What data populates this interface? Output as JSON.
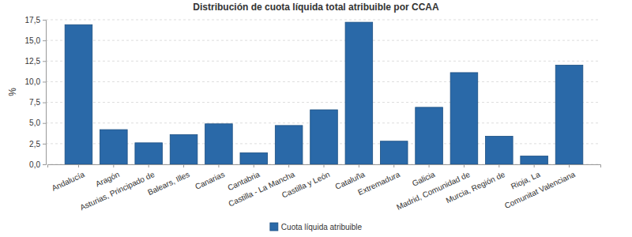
{
  "chart_data": {
    "type": "bar",
    "title": "Distribución de cuota líquida total atribuible por CCAA",
    "y_label": "%",
    "categories": [
      "Andalucía",
      "Aragón",
      "Asturias, Principado de",
      "Balears, Illes",
      "Canarias",
      "Cantabria",
      "Castilla - La Mancha",
      "Castilla y León",
      "Cataluña",
      "Extremadura",
      "Galicia",
      "Madrid, Comunidad de",
      "Murcia, Región de",
      "Rioja, La",
      "Comunitat Valenciana"
    ],
    "series": [
      {
        "name": "Cuota líquida atribuible",
        "color": "#2a69a8",
        "values": [
          16.9,
          4.2,
          2.6,
          3.6,
          4.9,
          1.4,
          4.7,
          6.6,
          17.2,
          2.8,
          6.9,
          11.1,
          3.4,
          1.0,
          12.0
        ]
      }
    ],
    "ylim": [
      0,
      17.5
    ],
    "yticks": [
      {
        "value": 0,
        "label": "0,0"
      },
      {
        "value": 2.5,
        "label": "2,5"
      },
      {
        "value": 5,
        "label": "5,0"
      },
      {
        "value": 7.5,
        "label": "7,5"
      },
      {
        "value": 10,
        "label": "10,0"
      },
      {
        "value": 12.5,
        "label": "12,5"
      },
      {
        "value": 15,
        "label": "15,0"
      },
      {
        "value": 17.5,
        "label": "17,5"
      }
    ],
    "grid": true,
    "legend": "bottom"
  }
}
